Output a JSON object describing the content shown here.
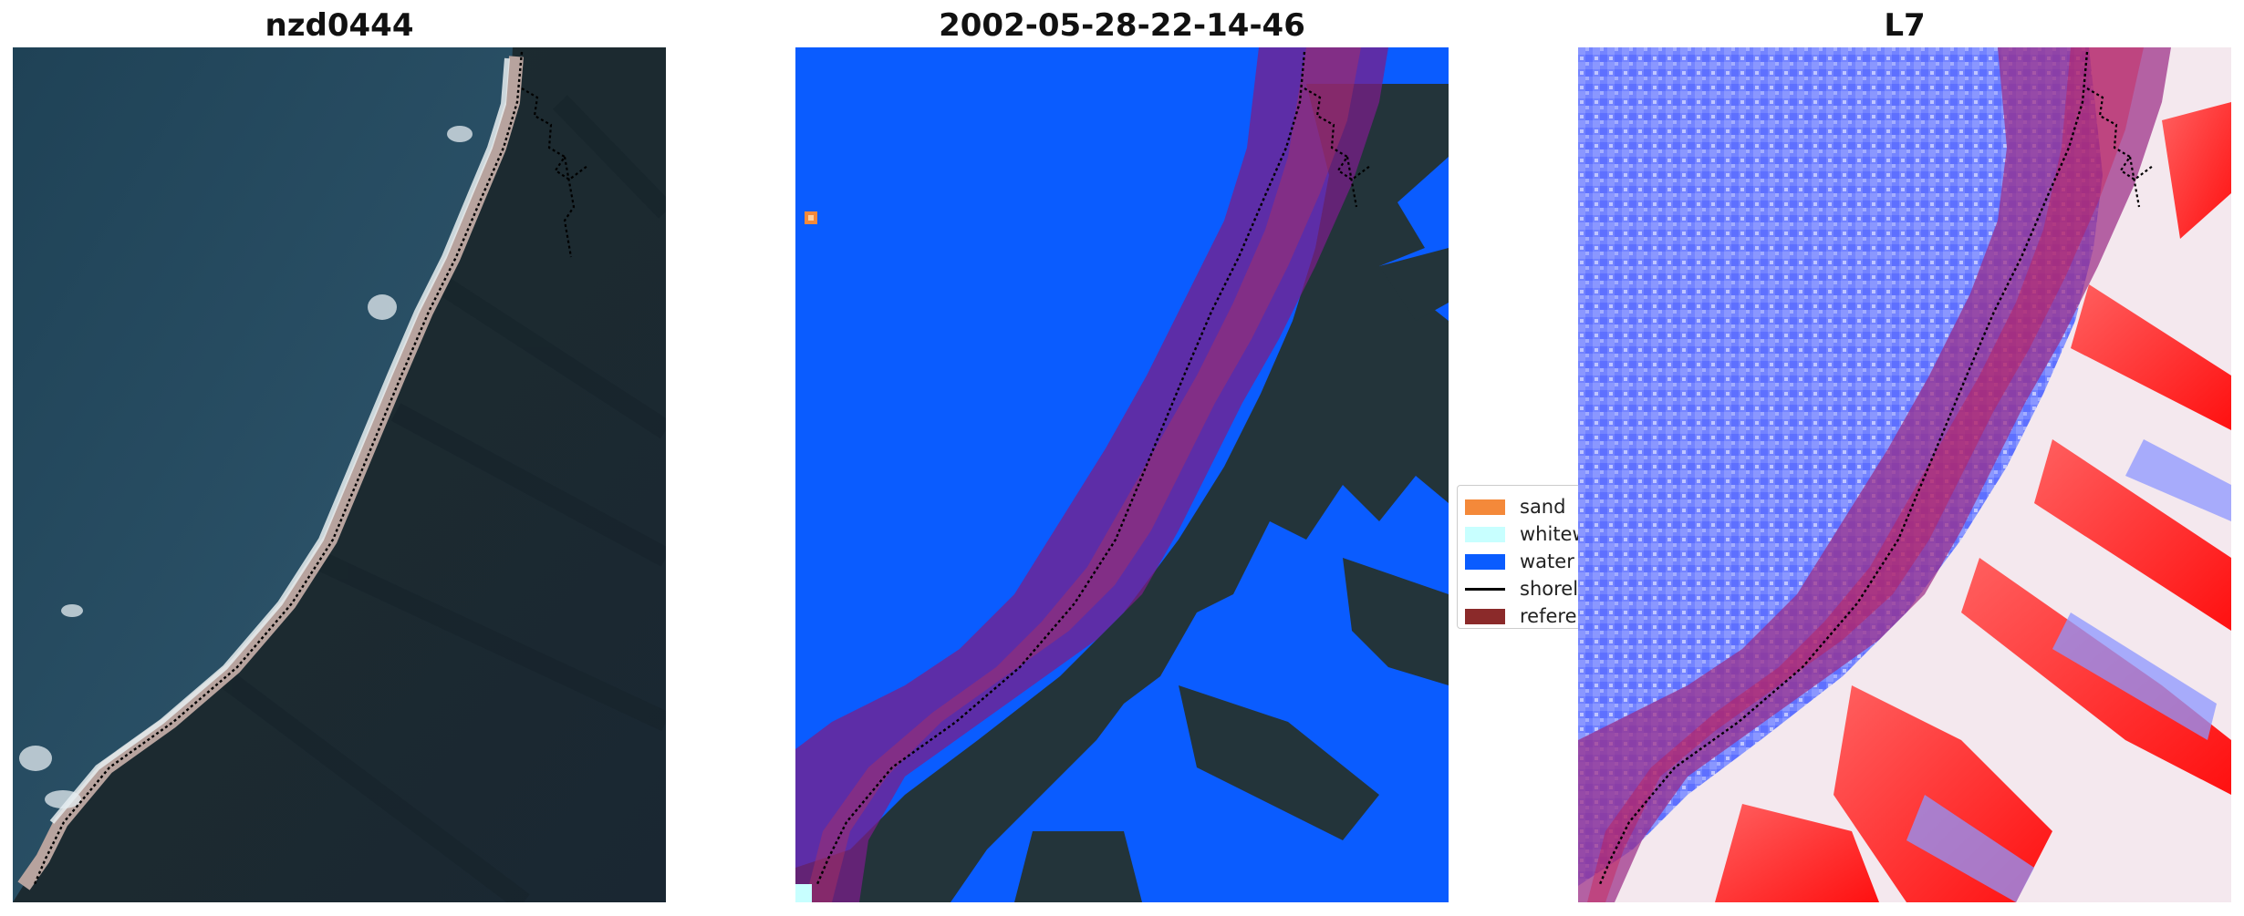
{
  "panels": [
    {
      "title": "nzd0444"
    },
    {
      "title": "2002-05-28-22-14-46"
    },
    {
      "title": "L7"
    }
  ],
  "legend": {
    "items": [
      {
        "label": "sand",
        "color": "#f4893a",
        "kind": "patch"
      },
      {
        "label": "whitewater",
        "color": "#c8ffff",
        "kind": "patch"
      },
      {
        "label": "water",
        "color": "#0a5cff",
        "kind": "patch"
      },
      {
        "label": "shoreline",
        "color": "#000000",
        "kind": "line"
      },
      {
        "label": "reference shoreline buffer",
        "color": "#8b2a2a",
        "kind": "patch"
      }
    ]
  },
  "colors": {
    "sea": "#22485e",
    "land": "#1d2b2f",
    "beach": "#b9a5a0",
    "water_class": "#0a5cff",
    "buffer": "#8b1a5e",
    "index_low": "#6a78ff",
    "index_high": "#ff2020"
  }
}
